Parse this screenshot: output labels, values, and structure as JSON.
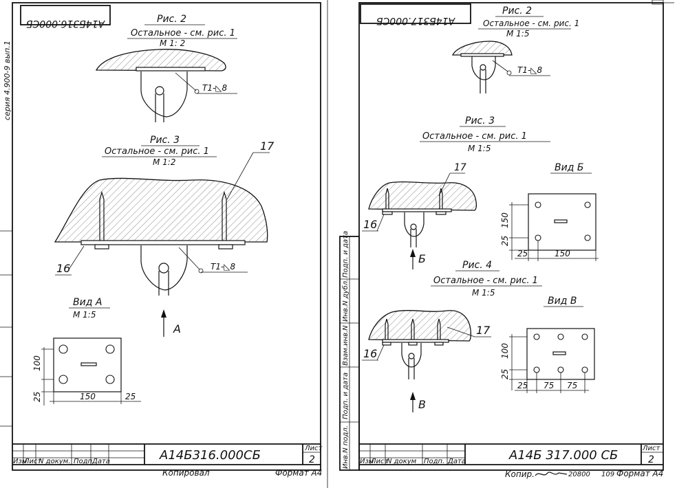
{
  "sheet_left": {
    "code": "А14Б316.000СБ",
    "code_mirrored": "А14Б316.000СБ",
    "series": "серия 4.900-9 вып.1",
    "fig2": {
      "title": "Рис. 2",
      "note": "Остальное - см. рис. 1",
      "scale": "М 1: 2",
      "weld": "Т1-◺8"
    },
    "fig3": {
      "title": "Рис. 3",
      "note": "Остальное - см. рис. 1",
      "scale": "М 1:2",
      "weld": "Т1-◺8",
      "label_17": "17",
      "label_16": "16",
      "arrow": "А"
    },
    "view": {
      "title": "Вид А",
      "scale": "М 1:5",
      "dim_100": "100",
      "dim_25v": "25",
      "dim_150": "150",
      "dim_25h": "25"
    },
    "stamp": {
      "change": "Изм",
      "list": "Лист",
      "doc": "N докум.",
      "sign": "Подп.",
      "date": "Дата",
      "sheet_label": "Лист",
      "sheet_no": "2"
    },
    "copied": "Копировал",
    "format": "Формат А4"
  },
  "sheet_right": {
    "code": "А14Б 317.000 СБ",
    "code_mirrored": "А14Б317.000СБ",
    "fig2": {
      "title": "Рис. 2",
      "note": "Остальное - см. рис. 1",
      "scale": "М 1:5",
      "weld": "Т1-◺8"
    },
    "fig3": {
      "title": "Рис. 3",
      "note": "Остальное - см. рис. 1",
      "scale": "М 1:5",
      "label_17": "17",
      "label_16": "16",
      "arrow": "Б"
    },
    "view_b": {
      "title": "Вид Б",
      "dim_150v": "150",
      "dim_25v": "25",
      "dim_25h": "25",
      "dim_150h": "150"
    },
    "fig4": {
      "title": "Рис. 4",
      "note": "Остальное - см. рис. 1",
      "scale": "М 1:5",
      "label_17": "17",
      "label_16": "16",
      "arrow": "В"
    },
    "view_v": {
      "title": "Вид В",
      "dim_100": "100",
      "dim_25v": "25",
      "dim_25h": "25",
      "dim_75a": "75",
      "dim_75b": "75"
    },
    "side_labels": [
      "Инв.N подл.",
      "Подп. и дата",
      "Взам.инв.N",
      "Инв.N дубл.",
      "Подп. и дата"
    ],
    "stamp": {
      "change": "Изм",
      "list": "Лист",
      "doc": "N докум",
      "sign": "Подп.",
      "date": "Дата",
      "sheet_label": "Лист",
      "sheet_no": "2"
    },
    "copied": "Копир.",
    "order": "20800",
    "order2": "109",
    "format": "Формат А4"
  }
}
